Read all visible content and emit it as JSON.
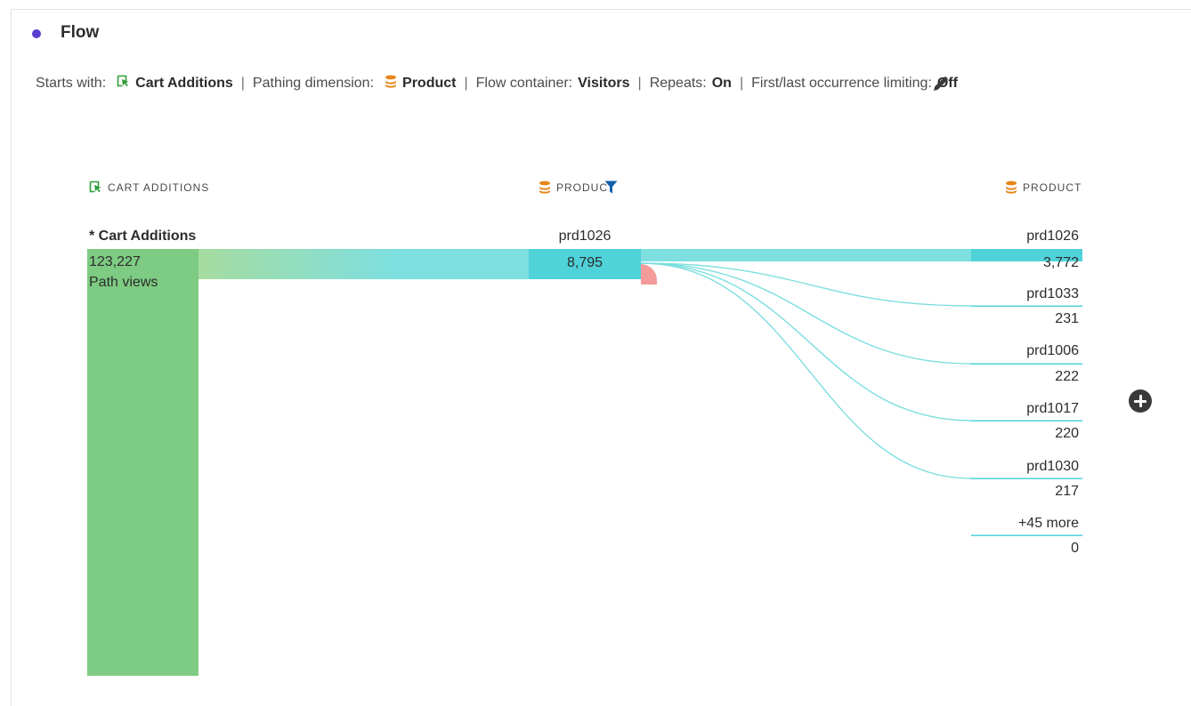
{
  "panel": {
    "title": "Flow",
    "dot_color": "#5b3fd1"
  },
  "settings": {
    "starts_with_label": "Starts with:",
    "starts_with_value": "Cart Additions",
    "pathing_label": "Pathing dimension:",
    "pathing_value": "Product",
    "container_label": "Flow container:",
    "container_value": "Visitors",
    "repeats_label": "Repeats:",
    "repeats_value": "On",
    "limiting_label": "First/last occurrence limiting:",
    "limiting_value": "Off",
    "separator": "|",
    "icons": {
      "starts_with": "cart-additions-icon",
      "pathing": "product-dimension-icon",
      "edit": "pencil-icon"
    }
  },
  "columns": [
    {
      "header": "CART ADDITIONS",
      "icon": "cart-additions-icon"
    },
    {
      "header": "PRODUCT",
      "icon": "product-dimension-icon",
      "filter_icon": "filter-icon"
    },
    {
      "header": "PRODUCT",
      "icon": "product-dimension-icon"
    }
  ],
  "start_node": {
    "label": "* Cart Additions",
    "value": "123,227",
    "caption": "Path views",
    "color": "#7ecb83"
  },
  "middle_node": {
    "label": "prd1026",
    "value": "8,795",
    "color": "#4fd2d8"
  },
  "right_nodes": [
    {
      "label": "prd1026",
      "value": "3,772"
    },
    {
      "label": "prd1033",
      "value": "231"
    },
    {
      "label": "prd1006",
      "value": "222"
    },
    {
      "label": "prd1017",
      "value": "220"
    },
    {
      "label": "prd1030",
      "value": "217"
    },
    {
      "label": "+45 more",
      "value": "0"
    }
  ],
  "colors": {
    "flow_cyan": "#4fd2d8",
    "flow_green": "#a6dca0",
    "exit_red": "#f39b9b",
    "filter_blue": "#1460aa",
    "icon_orange": "#e68619",
    "icon_green": "#2d9d3a"
  },
  "add_button_icon": "plus-circle-icon"
}
